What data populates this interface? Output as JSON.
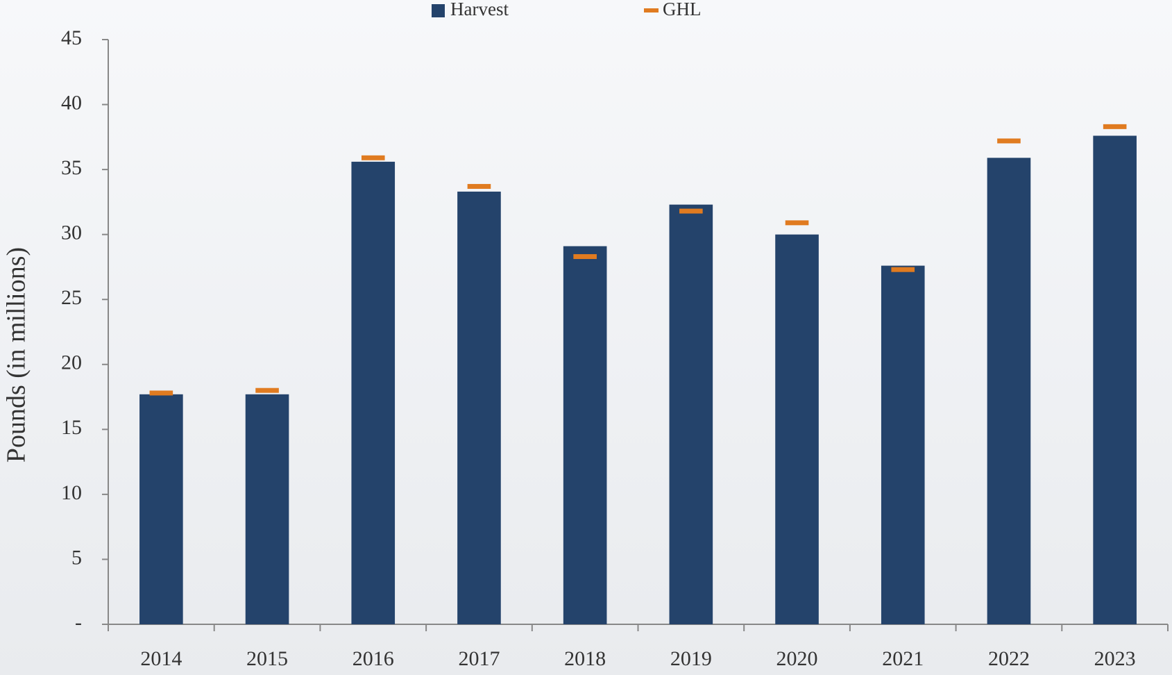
{
  "chart_data": {
    "type": "bar",
    "y_label": "Pounds (in millions)",
    "categories": [
      "2014",
      "2015",
      "2016",
      "2017",
      "2018",
      "2019",
      "2020",
      "2021",
      "2022",
      "2023"
    ],
    "series": [
      {
        "name": "Harvest",
        "color": "#24436b",
        "style": "bar",
        "values": [
          17.7,
          17.7,
          35.6,
          33.3,
          29.1,
          32.3,
          30.0,
          27.6,
          35.9,
          37.6
        ]
      },
      {
        "name": "GHL",
        "color": "#e07b20",
        "style": "dash",
        "values": [
          17.8,
          18.0,
          35.9,
          33.7,
          28.3,
          31.8,
          30.9,
          27.3,
          37.2,
          38.3
        ]
      }
    ],
    "ylim": [
      0,
      45
    ],
    "yticks": [
      {
        "value": 0,
        "label": "-"
      },
      5,
      10,
      15,
      20,
      25,
      30,
      35,
      40,
      45
    ],
    "grid": false
  }
}
